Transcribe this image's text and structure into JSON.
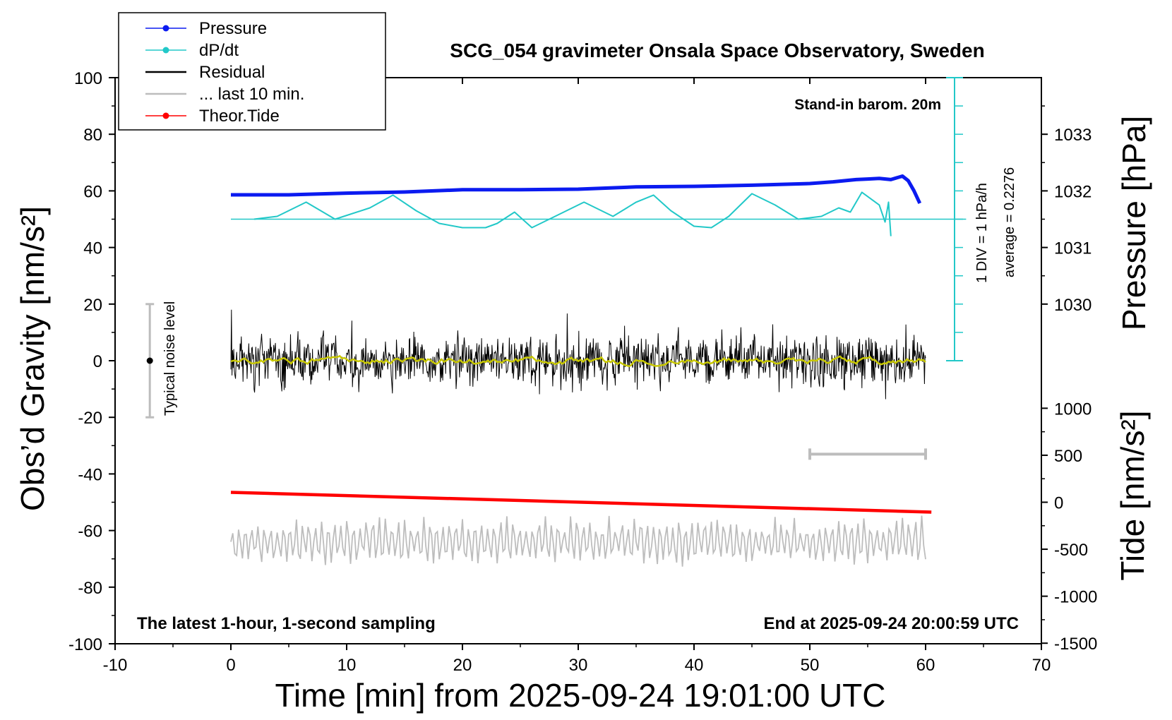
{
  "colors": {
    "pressure": "#0b1bf0",
    "dpdt": "#22c8c8",
    "residual": "#000000",
    "last10": "#bdbdbd",
    "tide": "#ff0000",
    "smooth": "#c8c800",
    "noise_bar": "#bdbdbd"
  },
  "chart_data": {
    "type": "line",
    "title": "SCG_054 gravimeter Onsala Space Observatory, Sweden",
    "xlabel": "Time [min] from 2025-09-24 19:01:00 UTC",
    "ylabel": "Obs’d Gravity [nm/s²]",
    "y2label": "Pressure [hPa]",
    "y3label": "Tide [nm/s²]",
    "xlim": [
      -10,
      70
    ],
    "ylim": [
      -100,
      100
    ],
    "x_ticks": [
      "-10",
      "0",
      "10",
      "20",
      "30",
      "40",
      "50",
      "60",
      "70"
    ],
    "y_ticks": [
      "-100",
      "-80",
      "-60",
      "-40",
      "-20",
      "0",
      "20",
      "40",
      "60",
      "80",
      "100"
    ],
    "pressure_ticks": [
      "1030",
      "1031",
      "1032",
      "1033"
    ],
    "tide_ticks": [
      "-1500",
      "-1000",
      "-500",
      "0",
      "500",
      "1000"
    ],
    "legend": {
      "position": "top-left",
      "entries": [
        "Pressure",
        "dP/dt",
        "Residual",
        "... last 10 min.",
        "Theor.Tide"
      ]
    },
    "annotations": {
      "barometer": "Stand-in barom. 20m",
      "scale": "1 DIV = 1 hPa/h",
      "average": "average = 0.2276",
      "noise": "Typical noise level",
      "bottom_left": "The latest 1-hour, 1-second sampling",
      "bottom_right": "End at 2025-09-24 20:00:59 UTC"
    },
    "series": [
      {
        "name": "Pressure",
        "unit": "hPa",
        "x": [
          0,
          5,
          10,
          15,
          20,
          25,
          30,
          35,
          40,
          45,
          50,
          52,
          54,
          55,
          56,
          57,
          58,
          58.5,
          59,
          59.5
        ],
        "y": [
          1031.93,
          1031.93,
          1031.96,
          1031.98,
          1032.02,
          1032.02,
          1032.03,
          1032.07,
          1032.08,
          1032.1,
          1032.13,
          1032.16,
          1032.2,
          1032.21,
          1032.22,
          1032.2,
          1032.26,
          1032.18,
          1032.0,
          1031.78
        ]
      },
      {
        "name": "dP/dt",
        "unit": "hPa/h",
        "baseline": 50,
        "x": [
          2,
          4,
          6.5,
          9,
          12,
          14,
          16,
          18,
          20,
          22,
          23,
          24.5,
          26,
          28,
          30.5,
          33,
          35,
          36.5,
          38,
          40,
          41.5,
          43,
          45,
          47,
          49,
          51,
          52.5,
          53.5,
          54.5,
          56,
          56.5,
          56.8,
          57
        ],
        "y": [
          50,
          51,
          56,
          50,
          54,
          58.5,
          53,
          48.5,
          47,
          47,
          48.5,
          52.5,
          47,
          51,
          56,
          51,
          56,
          58.5,
          53,
          47.5,
          47,
          51,
          59,
          55,
          50,
          51,
          54,
          52.5,
          59.5,
          55,
          49,
          56,
          44
        ]
      },
      {
        "name": "Residual",
        "unit": "nm/s²",
        "x_range": [
          0,
          60
        ],
        "amplitude_typical": 8,
        "amplitude_max": 18,
        "smoothed_mean": 0
      },
      {
        "name": "... last 10 min.",
        "unit": "nm/s²",
        "x_range": [
          0,
          60
        ],
        "center": -64,
        "amplitude_typical": 7,
        "amplitude_max": 14
      },
      {
        "name": "Theor.Tide",
        "unit": "nm/s²",
        "x": [
          0,
          60.5
        ],
        "y": [
          -46.5,
          -53.5
        ]
      }
    ],
    "noise_level": {
      "x": -7,
      "center": 0,
      "range": [
        -20,
        20
      ]
    },
    "scale_bar_x": [
      50,
      60
    ]
  }
}
